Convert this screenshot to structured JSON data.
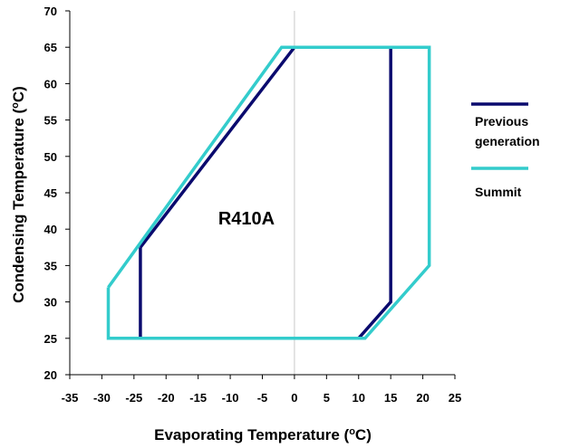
{
  "chart_data": {
    "type": "line",
    "xlabel": "Evaporating Temperature (",
    "xlabel_sup": "o",
    "xlabel_suffix": "C)",
    "ylabel": "Condensing Temperature (",
    "ylabel_sup": "o",
    "ylabel_suffix": "C)",
    "xlim": [
      -35,
      25
    ],
    "ylim": [
      20,
      70
    ],
    "xticks": [
      "-35",
      "-30",
      "-25",
      "-20",
      "-15",
      "-10",
      "-5",
      "0",
      "5",
      "10",
      "15",
      "20",
      "25"
    ],
    "yticks": [
      "20",
      "25",
      "30",
      "35",
      "40",
      "45",
      "50",
      "55",
      "60",
      "65",
      "70"
    ],
    "grid": "vertical at x=0 only",
    "legend_position": "right",
    "annotation": "R410A",
    "series": [
      {
        "name": "Previous generation",
        "color": "#0a0a6e",
        "line_label_1": "Previous",
        "line_label_2": "generation",
        "x": [
          -24,
          -24,
          10,
          15,
          15,
          0,
          -24
        ],
        "y": [
          37.5,
          25,
          25,
          30,
          65,
          65,
          37.5
        ]
      },
      {
        "name": "Summit",
        "color": "#33cccc",
        "line_label_1": "Summit",
        "x": [
          -29,
          -29,
          11,
          21,
          21,
          -2,
          -29
        ],
        "y": [
          32,
          25,
          25,
          35,
          65,
          65,
          32
        ]
      }
    ]
  }
}
